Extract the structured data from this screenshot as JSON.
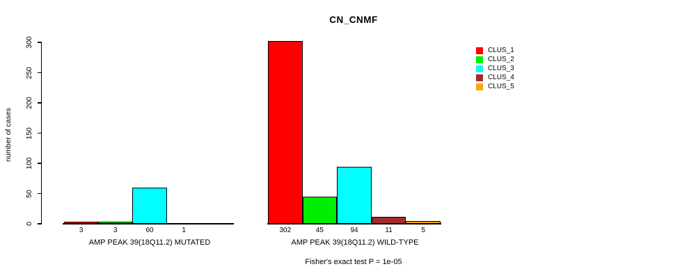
{
  "background_color": "#ffffff",
  "axis_color": "#000000",
  "chart_data": {
    "type": "bar",
    "title": "CN_CNMF",
    "ylabel": "number of cases",
    "xlabel": "",
    "ylim": [
      0,
      300
    ],
    "yticks": [
      0,
      50,
      100,
      150,
      200,
      250,
      300
    ],
    "grid": "off",
    "legend_position": "right",
    "legend": [
      {
        "label": "CLUS_1",
        "color": "#FF0000"
      },
      {
        "label": "CLUS_2",
        "color": "#00EE00"
      },
      {
        "label": "CLUS_3",
        "color": "#00FFFF"
      },
      {
        "label": "CLUS_4",
        "color": "#A52A2A"
      },
      {
        "label": "CLUS_5",
        "color": "#FFA500"
      }
    ],
    "groups": [
      {
        "id": "mutated",
        "label": "AMP PEAK 39(18Q11.2) MUTATED",
        "values": [
          3,
          3,
          60,
          1,
          0
        ]
      },
      {
        "id": "wildtype",
        "label": "AMP PEAK 39(18Q11.2) WILD-TYPE",
        "values": [
          302,
          45,
          94,
          11,
          5
        ]
      }
    ],
    "annotation": "Fisher's exact test P = 1e-05"
  }
}
